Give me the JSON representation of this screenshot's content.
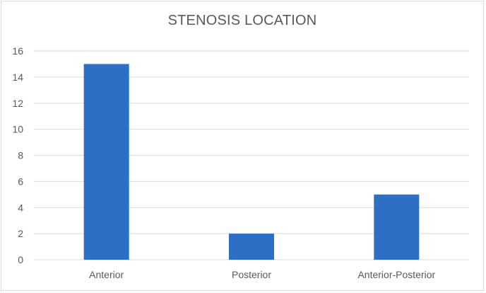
{
  "chart_data": {
    "type": "bar",
    "title": "STENOSIS LOCATION",
    "categories": [
      "Anterior",
      "Posterior",
      "Anterior-Posterior"
    ],
    "values": [
      15,
      2,
      5
    ],
    "ylim": [
      0,
      16
    ],
    "yticks": [
      0,
      2,
      4,
      6,
      8,
      10,
      12,
      14,
      16
    ],
    "xlabel": "",
    "ylabel": "",
    "grid": true,
    "legend": "none",
    "bar_color": "#2e6fc6",
    "grid_color": "#d9d9d9",
    "text_color": "#595959"
  }
}
